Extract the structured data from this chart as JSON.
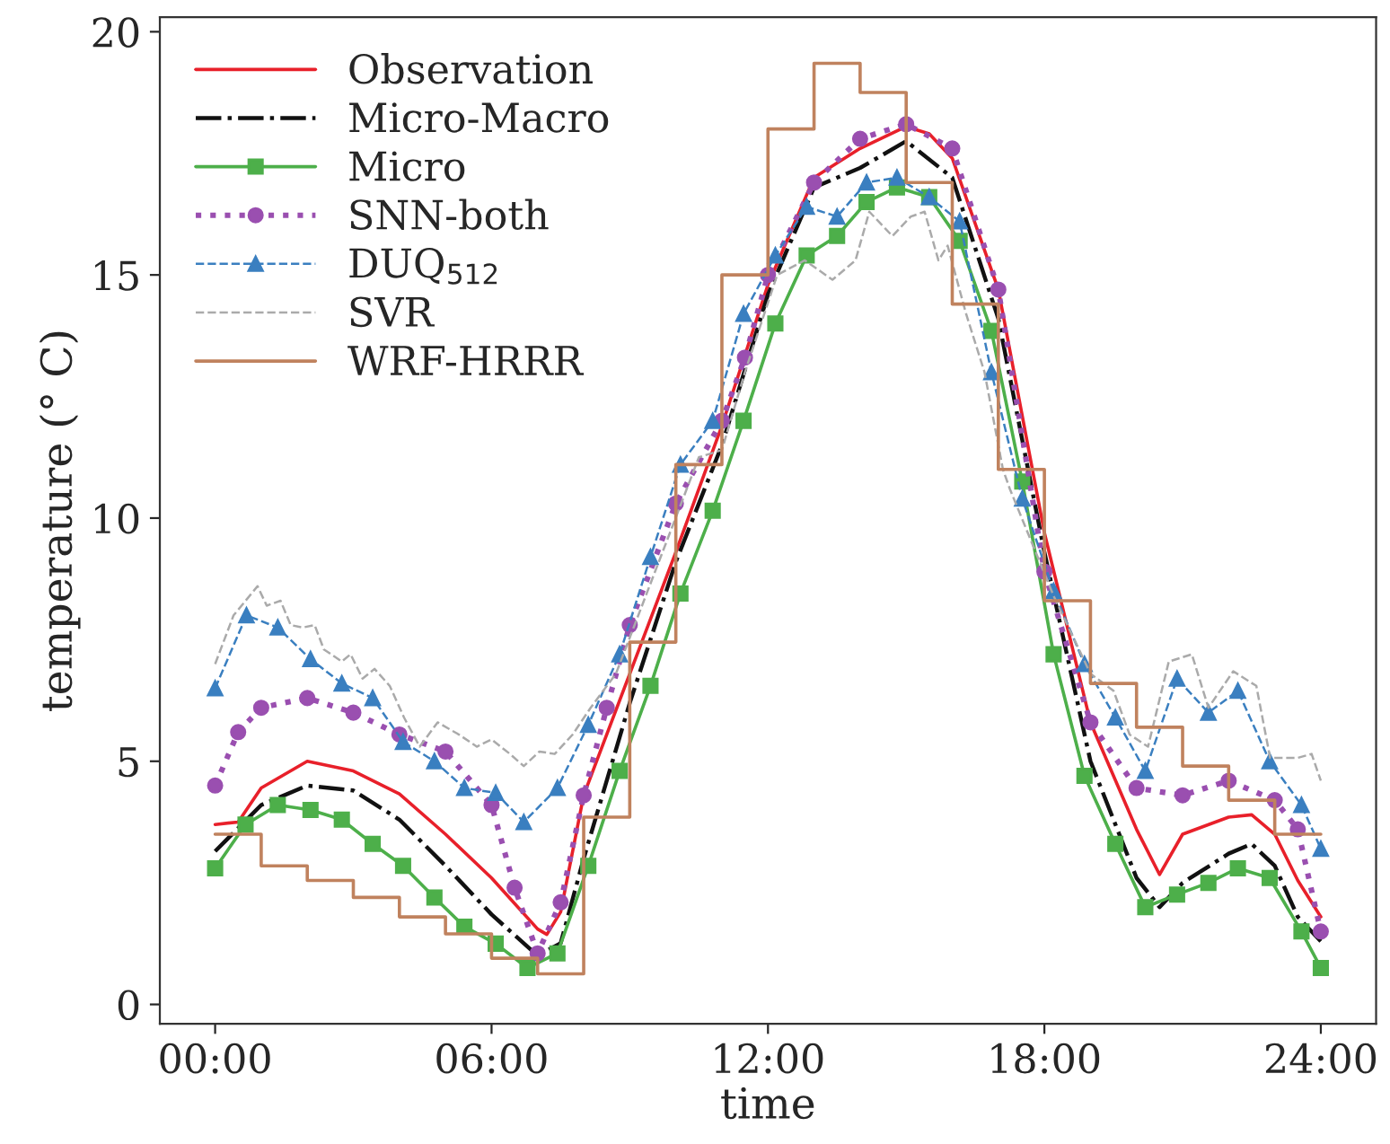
{
  "chart_data": {
    "type": "line",
    "xlabel": "time",
    "ylabel": "temperature (° C)",
    "xlim": [
      -1.2,
      25.2
    ],
    "xticks": [
      {
        "value": 0,
        "label": "00:00"
      },
      {
        "value": 6,
        "label": "06:00"
      },
      {
        "value": 12,
        "label": "12:00"
      },
      {
        "value": 18,
        "label": "18:00"
      },
      {
        "value": 24,
        "label": "24:00"
      }
    ],
    "ylim": [
      -0.4,
      20.3
    ],
    "yticks": [
      0,
      5,
      10,
      15,
      20
    ],
    "grid": false,
    "legend": "top left",
    "series": [
      {
        "name": "Observation",
        "color": "#e8202a",
        "line_style": "solid",
        "marker": "none",
        "x": [
          0,
          0.5,
          1,
          2,
          3,
          4,
          5,
          6,
          7,
          7.2,
          7.5,
          8,
          9,
          10,
          11,
          12,
          13,
          14,
          15,
          15.5,
          16,
          17,
          18,
          19,
          20,
          20.5,
          21,
          22,
          22.5,
          23,
          23.5,
          24
        ],
        "values": [
          3.7,
          3.75,
          4.45,
          5.0,
          4.8,
          4.33,
          3.5,
          2.6,
          1.55,
          1.44,
          1.9,
          4.3,
          6.8,
          9.3,
          11.9,
          14.8,
          17.0,
          17.6,
          18.05,
          17.9,
          17.4,
          14.7,
          9.7,
          5.8,
          3.6,
          2.67,
          3.5,
          3.85,
          3.9,
          3.5,
          2.55,
          1.8
        ]
      },
      {
        "name": "Micro-Macro",
        "color": "#111111",
        "line_style": "dashdot",
        "marker": "none",
        "x": [
          0,
          1,
          2,
          3,
          4,
          5,
          6,
          7,
          7.5,
          8,
          9,
          10,
          11,
          12,
          13,
          14,
          15,
          16,
          17,
          18,
          19,
          20,
          20.5,
          21,
          22,
          22.5,
          23,
          23.5,
          24
        ],
        "values": [
          3.15,
          4.1,
          4.5,
          4.4,
          3.8,
          2.85,
          1.85,
          1.0,
          1.26,
          3.0,
          6.2,
          9.1,
          11.5,
          14.6,
          16.8,
          17.2,
          17.75,
          17.0,
          14.1,
          9.3,
          5.0,
          2.6,
          2.0,
          2.5,
          3.1,
          3.3,
          2.85,
          1.8,
          1.3
        ]
      },
      {
        "name": "Micro",
        "color": "#4daf4a",
        "line_style": "solid",
        "marker": "square",
        "x": [
          0,
          0.66,
          1.36,
          2.07,
          2.75,
          3.42,
          4.08,
          4.76,
          5.41,
          6.09,
          6.78,
          7.43,
          8.1,
          8.78,
          9.45,
          10.1,
          10.8,
          11.47,
          12.16,
          12.84,
          13.5,
          14.14,
          14.8,
          15.5,
          16.16,
          16.85,
          17.52,
          18.2,
          18.87,
          19.54,
          20.19,
          20.88,
          21.56,
          22.2,
          22.89,
          23.58,
          24
        ],
        "values": [
          2.8,
          3.7,
          4.1,
          4.0,
          3.8,
          3.3,
          2.85,
          2.2,
          1.6,
          1.25,
          0.75,
          1.05,
          2.85,
          4.8,
          6.55,
          8.45,
          10.15,
          12.0,
          14.0,
          15.4,
          15.8,
          16.5,
          16.8,
          16.6,
          15.7,
          13.85,
          10.75,
          7.2,
          4.7,
          3.3,
          2.0,
          2.26,
          2.5,
          2.8,
          2.6,
          1.5,
          0.75
        ]
      },
      {
        "name": "SNN-both",
        "color": "#9a4fb0",
        "line_style": "dotted",
        "marker": "circle",
        "x": [
          0,
          0.5,
          1,
          2,
          3,
          4,
          5,
          6,
          6.5,
          7,
          7.5,
          8,
          8.5,
          9,
          10,
          11,
          11.5,
          12,
          13,
          14,
          15,
          16,
          17,
          18,
          19,
          20,
          21,
          22,
          23,
          23.5,
          24
        ],
        "values": [
          4.5,
          5.6,
          6.1,
          6.3,
          6.0,
          5.55,
          5.2,
          4.1,
          2.4,
          1.05,
          2.1,
          4.3,
          6.1,
          7.8,
          10.3,
          12.0,
          13.3,
          15.0,
          16.9,
          17.8,
          18.1,
          17.6,
          14.7,
          8.9,
          5.8,
          4.45,
          4.3,
          4.6,
          4.2,
          3.6,
          1.5
        ]
      },
      {
        "name": "DUQ$_{512}$",
        "color": "#3a7fc0",
        "line_style": "dashed",
        "marker": "triangle",
        "x": [
          0,
          0.68,
          1.36,
          2.07,
          2.75,
          3.42,
          4.08,
          4.76,
          5.41,
          6.09,
          6.7,
          7.43,
          8.1,
          8.78,
          9.45,
          10.1,
          10.8,
          11.47,
          12.16,
          12.84,
          13.5,
          14.14,
          14.8,
          15.5,
          16.16,
          16.85,
          17.52,
          18.2,
          18.87,
          19.54,
          20.19,
          20.88,
          21.56,
          22.2,
          22.89,
          23.58,
          24
        ],
        "values": [
          6.5,
          8.0,
          7.75,
          7.1,
          6.6,
          6.3,
          5.4,
          5.0,
          4.45,
          4.35,
          3.75,
          4.45,
          5.75,
          7.2,
          9.2,
          11.1,
          12.0,
          14.2,
          15.4,
          16.4,
          16.2,
          16.9,
          17.0,
          16.6,
          16.1,
          13.0,
          10.4,
          8.5,
          7.0,
          5.9,
          4.8,
          6.7,
          6.0,
          6.45,
          5.0,
          4.1,
          3.2
        ]
      },
      {
        "name": "SVR",
        "color": "#aaaaaa",
        "line_style": "dashed",
        "marker": "none",
        "x": [
          0,
          0.4,
          0.92,
          1.12,
          1.42,
          1.64,
          1.9,
          2.16,
          2.36,
          2.75,
          2.94,
          3.2,
          3.46,
          3.79,
          4.1,
          4.44,
          4.83,
          5.29,
          5.68,
          6.0,
          6.4,
          6.7,
          7.04,
          7.37,
          7.76,
          8.15,
          8.7,
          10.5,
          11.0,
          11.5,
          12.2,
          12.8,
          13.4,
          13.9,
          14.2,
          14.7,
          15.1,
          15.4,
          15.7,
          15.9,
          16.3,
          16.7,
          17.1,
          17.25,
          18.2,
          19.0,
          19.5,
          19.85,
          20.25,
          20.7,
          21.2,
          21.56,
          22.1,
          22.6,
          22.9,
          23.5,
          23.8,
          24
        ],
        "values": [
          7.0,
          8.0,
          8.6,
          8.2,
          8.3,
          7.8,
          7.75,
          7.8,
          7.3,
          7.05,
          7.2,
          6.7,
          6.9,
          6.55,
          5.9,
          5.3,
          5.8,
          5.55,
          5.3,
          5.45,
          5.15,
          4.9,
          5.2,
          5.15,
          5.55,
          6.1,
          6.8,
          11.25,
          11.4,
          13.0,
          15.0,
          15.3,
          14.9,
          15.3,
          16.3,
          15.8,
          16.2,
          16.3,
          15.3,
          15.6,
          14.2,
          13.0,
          11.0,
          10.6,
          8.4,
          6.8,
          6.45,
          5.55,
          5.3,
          7.05,
          7.2,
          6.1,
          6.85,
          6.55,
          5.07,
          5.07,
          5.15,
          4.6
        ]
      },
      {
        "name": "WRF-HRRR",
        "color": "#c0825e",
        "type": "step",
        "line_style": "solid",
        "marker": "none",
        "x": [
          0,
          1,
          2,
          3,
          4,
          5,
          6,
          7,
          8,
          9,
          10,
          11,
          12,
          13,
          14,
          15,
          16,
          17,
          18,
          19,
          20,
          21,
          22,
          23,
          24
        ],
        "values": [
          3.5,
          2.85,
          2.55,
          2.2,
          1.8,
          1.45,
          0.95,
          0.63,
          3.85,
          7.45,
          11.1,
          15.0,
          18.0,
          19.35,
          18.75,
          16.9,
          14.4,
          11.0,
          8.3,
          6.6,
          5.7,
          4.9,
          4.2,
          3.5,
          3.5
        ]
      }
    ]
  }
}
